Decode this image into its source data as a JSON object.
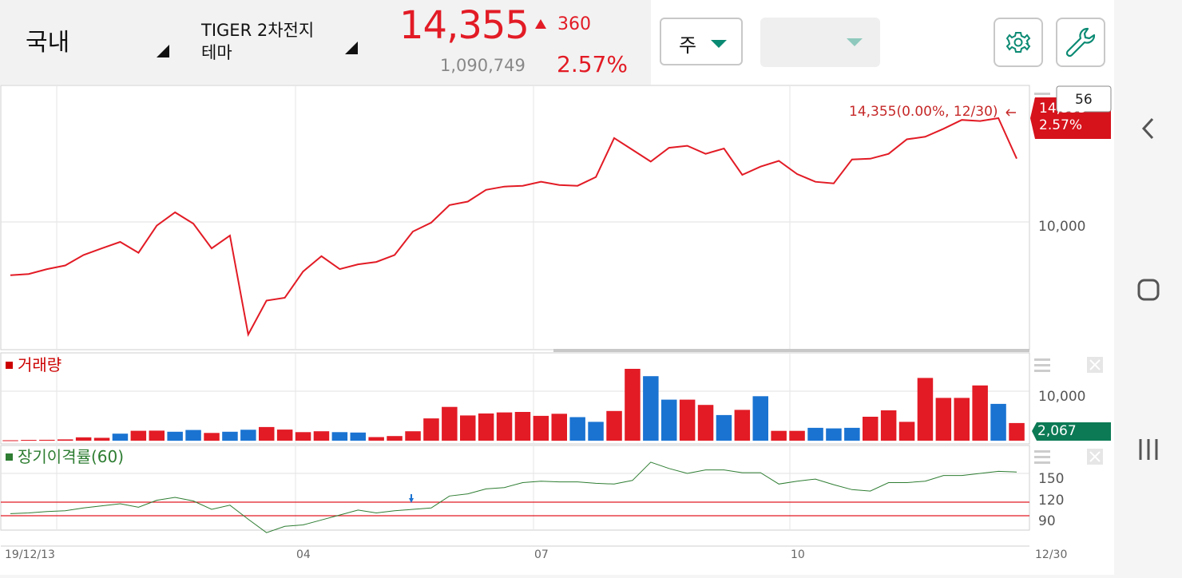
{
  "header": {
    "market": "국내",
    "stock_name_line1": "TIGER 2차전지",
    "stock_name_line2": "테마",
    "price": "14,355",
    "change": "360",
    "volume": "1,090,749",
    "change_pct": "2.57%"
  },
  "toolbar": {
    "period_label": "주",
    "secondary_select": ""
  },
  "price_chart": {
    "last_label": "14,355(0.00%, 12/30)",
    "badge_price": "14,355",
    "badge_pct": "2.57%",
    "count_box": "56",
    "y_tick": "10,000"
  },
  "volume_panel": {
    "title": "거래량",
    "y_tick": "10,000",
    "last_value": "2,067"
  },
  "disparity_panel": {
    "title": "장기이격률(60)",
    "y_ticks": [
      "150",
      "120",
      "90"
    ]
  },
  "x_axis": {
    "labels": [
      "19/12/13",
      "04",
      "07",
      "10",
      "12/30"
    ]
  },
  "colors": {
    "up": "#e21b25",
    "down": "#1a73d1",
    "accent": "#0b8a73"
  },
  "icons": {
    "settings": "gear-icon",
    "tools": "wrench-icon",
    "back": "chevron-left-icon",
    "home": "home-icon",
    "recents": "recents-icon"
  },
  "chart_data": [
    {
      "type": "line",
      "title": "",
      "series": [
        {
          "values": [
            8050,
            8100,
            8300,
            8450,
            8900,
            9200,
            9500,
            9000,
            10300,
            11000,
            10400,
            9200,
            9800,
            6000,
            7100,
            7200,
            8200,
            8850,
            8300,
            8500,
            8600,
            8900,
            10000,
            10450,
            11400,
            11600,
            12300,
            12500,
            12550,
            12800,
            12600,
            12550,
            13100,
            15900,
            15000,
            14150,
            15150,
            15300,
            14700,
            15100,
            13250,
            13800,
            14200,
            13300,
            12800,
            12700,
            14300,
            14350,
            14700,
            15800,
            16000,
            16650,
            17400,
            17300,
            17550,
            14355
          ]
        }
      ],
      "y_tick_label": "10,000"
    },
    {
      "type": "bar",
      "title": "거래량",
      "values": [
        50,
        90,
        100,
        150,
        390,
        340,
        820,
        1160,
        1180,
        1050,
        1250,
        910,
        1050,
        1280,
        1600,
        1300,
        1000,
        1100,
        1000,
        950,
        420,
        540,
        1100,
        2600,
        3950,
        2950,
        3180,
        3300,
        3360,
        2900,
        3150,
        2750,
        2200,
        3470,
        8400,
        7540,
        4800,
        4800,
        4180,
        3000,
        3600,
        5200,
        1150,
        1150,
        1500,
        1440,
        1500,
        2800,
        3550,
        2200,
        7340,
        5000,
        5000,
        6460,
        4300,
        2067
      ],
      "up": [
        1,
        1,
        1,
        1,
        1,
        1,
        0,
        1,
        1,
        0,
        0,
        1,
        0,
        0,
        1,
        1,
        1,
        1,
        0,
        0,
        1,
        1,
        1,
        1,
        1,
        1,
        1,
        1,
        1,
        1,
        1,
        0,
        0,
        1,
        1,
        0,
        0,
        1,
        1,
        0,
        1,
        0,
        1,
        1,
        0,
        0,
        0,
        1,
        1,
        1,
        1,
        1,
        1,
        1,
        0,
        1
      ],
      "y_tick_label": "10,000",
      "last_label": "2,067"
    },
    {
      "type": "line",
      "title": "장기이격률(60)",
      "series": [
        {
          "values": [
            93,
            94,
            96,
            97,
            101,
            104,
            107,
            102,
            112,
            116,
            111,
            99,
            105,
            85,
            66,
            75,
            77,
            84,
            91,
            98,
            94,
            97,
            99,
            101,
            118,
            121,
            128,
            130,
            137,
            139,
            138,
            138,
            136,
            135,
            140,
            166,
            157,
            150,
            155,
            155,
            151,
            151,
            135,
            139,
            142,
            134,
            127,
            125,
            137,
            137,
            139,
            147,
            147,
            150,
            153,
            152
          ]
        }
      ],
      "y_ticks": [
        150,
        120,
        90
      ],
      "reference_lines": [
        120,
        90
      ]
    }
  ]
}
